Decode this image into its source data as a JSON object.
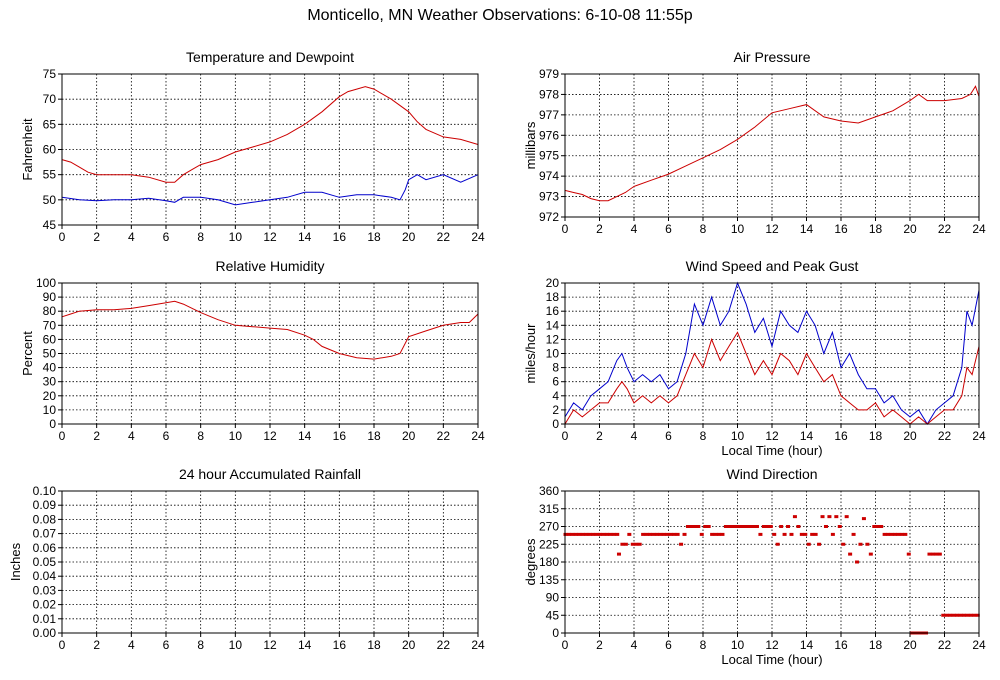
{
  "title": "Monticello, MN Weather Observations: 6-10-08 11:55p",
  "chart_data": [
    {
      "id": "temp",
      "type": "line",
      "title": "Temperature and Dewpoint",
      "xlabel": "",
      "ylabel": "Fahrenheit",
      "xlim": [
        0,
        24
      ],
      "ylim": [
        45,
        75
      ],
      "xticks": [
        0,
        2,
        4,
        6,
        8,
        10,
        12,
        14,
        16,
        18,
        20,
        22,
        24
      ],
      "yticks": [
        45,
        50,
        55,
        60,
        65,
        70,
        75
      ],
      "series": [
        {
          "color": "#cc0000",
          "x": [
            0,
            0.5,
            1,
            1.5,
            2,
            3,
            4,
            5,
            6,
            6.5,
            7,
            7.5,
            8,
            9,
            10,
            11,
            12,
            13,
            14,
            15,
            16,
            16.5,
            17,
            17.5,
            18,
            19,
            20,
            20.5,
            21,
            22,
            23,
            24
          ],
          "y": [
            58,
            57.5,
            56.5,
            55.5,
            55,
            55,
            55,
            54.5,
            53.5,
            53.5,
            55,
            56,
            57,
            58,
            59.5,
            60.5,
            61.5,
            63,
            65,
            67.5,
            70.5,
            71.5,
            72,
            72.5,
            72,
            70,
            67.5,
            65.5,
            64,
            62.5,
            62,
            61
          ]
        },
        {
          "color": "#0000cc",
          "x": [
            0,
            1,
            2,
            3,
            4,
            5,
            6,
            6.5,
            7,
            8,
            9,
            10,
            11,
            12,
            13,
            14,
            15,
            16,
            17,
            18,
            19,
            19.5,
            19.8,
            20,
            20.5,
            21,
            22,
            23,
            24
          ],
          "y": [
            50.5,
            50,
            49.8,
            50,
            50,
            50.3,
            49.8,
            49.5,
            50.5,
            50.5,
            50,
            49,
            49.5,
            50,
            50.5,
            51.5,
            51.5,
            50.5,
            51,
            51,
            50.5,
            50,
            52,
            54,
            55,
            54,
            55,
            53.5,
            55
          ]
        }
      ]
    },
    {
      "id": "pressure",
      "type": "line",
      "title": "Air Pressure",
      "xlabel": "",
      "ylabel": "millibars",
      "xlim": [
        0,
        24
      ],
      "ylim": [
        972,
        979
      ],
      "xticks": [
        0,
        2,
        4,
        6,
        8,
        10,
        12,
        14,
        16,
        18,
        20,
        22,
        24
      ],
      "yticks": [
        972,
        973,
        974,
        975,
        976,
        977,
        978,
        979
      ],
      "series": [
        {
          "color": "#cc0000",
          "x": [
            0,
            0.5,
            1,
            1.5,
            2,
            2.5,
            3,
            3.5,
            4,
            5,
            6,
            7,
            8,
            9,
            10,
            11,
            12,
            13,
            14,
            15,
            16,
            17,
            18,
            19,
            20,
            20.5,
            21,
            22,
            23,
            23.5,
            23.8,
            24
          ],
          "y": [
            973.3,
            973.2,
            973.1,
            972.9,
            972.8,
            972.8,
            973,
            973.2,
            973.5,
            973.8,
            974.1,
            974.5,
            974.9,
            975.3,
            975.8,
            976.4,
            977.1,
            977.3,
            977.5,
            976.9,
            976.7,
            976.6,
            976.9,
            977.2,
            977.7,
            978,
            977.7,
            977.7,
            977.8,
            978,
            978.4,
            977.9
          ]
        }
      ]
    },
    {
      "id": "humidity",
      "type": "line",
      "title": "Relative Humidity",
      "xlabel": "",
      "ylabel": "Percent",
      "xlim": [
        0,
        24
      ],
      "ylim": [
        0,
        100
      ],
      "xticks": [
        0,
        2,
        4,
        6,
        8,
        10,
        12,
        14,
        16,
        18,
        20,
        22,
        24
      ],
      "yticks": [
        0,
        10,
        20,
        30,
        40,
        50,
        60,
        70,
        80,
        90,
        100
      ],
      "series": [
        {
          "color": "#cc0000",
          "x": [
            0,
            0.5,
            1,
            2,
            3,
            4,
            5,
            6,
            6.5,
            7,
            8,
            9,
            10,
            11,
            12,
            13,
            14,
            14.5,
            15,
            16,
            17,
            18,
            19,
            19.5,
            20,
            21,
            22,
            23,
            23.5,
            24
          ],
          "y": [
            76,
            78,
            80,
            81,
            81,
            82,
            84,
            86,
            87,
            85,
            79,
            74,
            70,
            69,
            68,
            67,
            63,
            60,
            55,
            50,
            47,
            46,
            48,
            50,
            62,
            66,
            70,
            72,
            72,
            78
          ]
        }
      ]
    },
    {
      "id": "wind",
      "type": "line",
      "title": "Wind Speed and Peak Gust",
      "xlabel": "Local Time (hour)",
      "ylabel": "miles/hour",
      "xlim": [
        0,
        24
      ],
      "ylim": [
        0,
        20
      ],
      "xticks": [
        0,
        2,
        4,
        6,
        8,
        10,
        12,
        14,
        16,
        18,
        20,
        22,
        24
      ],
      "yticks": [
        0,
        2,
        4,
        6,
        8,
        10,
        12,
        14,
        16,
        18,
        20
      ],
      "series": [
        {
          "color": "#0000cc",
          "x": [
            0,
            0.5,
            1,
            1.5,
            2,
            2.5,
            3,
            3.3,
            3.6,
            4,
            4.5,
            5,
            5.5,
            6,
            6.5,
            7,
            7.5,
            8,
            8.5,
            9,
            9.5,
            10,
            10.5,
            11,
            11.5,
            12,
            12.5,
            13,
            13.5,
            14,
            14.5,
            15,
            15.5,
            16,
            16.5,
            17,
            17.5,
            18,
            18.5,
            19,
            19.5,
            20,
            20.5,
            21,
            21.5,
            22,
            22.5,
            23,
            23.3,
            23.6,
            24
          ],
          "y": [
            1,
            3,
            2,
            4,
            5,
            6,
            9,
            10,
            8,
            6,
            7,
            6,
            7,
            5,
            6,
            10,
            17,
            14,
            18,
            14,
            16,
            20,
            17,
            13,
            15,
            11,
            16,
            14,
            13,
            16,
            14,
            10,
            13,
            8,
            10,
            7,
            5,
            5,
            3,
            4,
            2,
            1,
            2,
            0,
            2,
            3,
            4,
            8,
            16,
            14,
            19
          ]
        },
        {
          "color": "#cc0000",
          "x": [
            0,
            0.5,
            1,
            1.5,
            2,
            2.5,
            3,
            3.3,
            3.6,
            4,
            4.5,
            5,
            5.5,
            6,
            6.5,
            7,
            7.5,
            8,
            8.5,
            9,
            9.5,
            10,
            10.5,
            11,
            11.5,
            12,
            12.5,
            13,
            13.5,
            14,
            14.5,
            15,
            15.5,
            16,
            16.5,
            17,
            17.5,
            18,
            18.5,
            19,
            19.5,
            20,
            20.5,
            21,
            21.5,
            22,
            22.5,
            23,
            23.3,
            23.6,
            24
          ],
          "y": [
            0,
            2,
            1,
            2,
            3,
            3,
            5,
            6,
            5,
            3,
            4,
            3,
            4,
            3,
            4,
            7,
            10,
            8,
            12,
            9,
            11,
            13,
            10,
            7,
            9,
            7,
            10,
            9,
            7,
            10,
            8,
            6,
            7,
            4,
            3,
            2,
            2,
            3,
            1,
            2,
            1,
            0,
            1,
            0,
            1,
            2,
            2,
            4,
            8,
            7,
            11
          ]
        }
      ]
    },
    {
      "id": "rain",
      "type": "line",
      "title": "24 hour Accumulated Rainfall",
      "xlabel": "",
      "ylabel": "Inches",
      "xlim": [
        0,
        24
      ],
      "ylim": [
        0,
        0.1
      ],
      "xticks": [
        0,
        2,
        4,
        6,
        8,
        10,
        12,
        14,
        16,
        18,
        20,
        22,
        24
      ],
      "yticks": [
        "0.00",
        "0.01",
        "0.02",
        "0.03",
        "0.04",
        "0.05",
        "0.06",
        "0.07",
        "0.08",
        "0.09",
        "0.10"
      ],
      "series": [
        {
          "color": "#cc0000",
          "x": [
            0,
            24
          ],
          "y": [
            0,
            0
          ]
        }
      ]
    },
    {
      "id": "direction",
      "type": "scatter",
      "title": "Wind Direction",
      "xlabel": "Local Time (hour)",
      "ylabel": "degrees",
      "xlim": [
        0,
        24
      ],
      "ylim": [
        0,
        360
      ],
      "xticks": [
        0,
        2,
        4,
        6,
        8,
        10,
        12,
        14,
        16,
        18,
        20,
        22,
        24
      ],
      "yticks": [
        0,
        45,
        90,
        135,
        180,
        225,
        270,
        315,
        360
      ],
      "series": [
        {
          "color": "#cc0000",
          "mode": "points",
          "x": [
            0,
            0.2,
            0.4,
            0.6,
            0.8,
            1,
            1.2,
            1.4,
            1.6,
            1.8,
            2,
            2.2,
            2.4,
            2.6,
            2.8,
            3,
            3.1,
            3.3,
            3.5,
            3.7,
            3.9,
            4.1,
            4.3,
            4.5,
            4.7,
            4.9,
            5.1,
            5.3,
            5.5,
            5.7,
            5.9,
            6.1,
            6.3,
            6.5,
            6.7,
            6.9,
            7.1,
            7.3,
            7.5,
            7.7,
            7.9,
            8.1,
            8.3,
            8.5,
            8.7,
            8.9,
            9.1,
            9.3,
            9.5,
            9.7,
            9.9,
            10.1,
            10.3,
            10.5,
            10.7,
            10.9,
            11.1,
            11.3,
            11.5,
            11.7,
            11.9,
            12.1,
            12.3,
            12.5,
            12.7,
            12.9,
            13.1,
            13.3,
            13.5,
            13.7,
            13.9,
            14.1,
            14.3,
            14.5,
            14.7,
            14.9,
            15.1,
            15.3,
            15.5,
            15.7,
            15.9,
            16.1,
            16.3,
            16.5,
            16.7,
            16.9,
            17.1,
            17.3,
            17.5,
            17.7,
            17.9,
            18.1,
            18.3,
            18.5,
            18.7,
            18.9,
            19.1,
            19.3,
            19.5,
            19.7,
            19.9,
            20.1,
            20.3,
            20.5,
            20.7,
            20.9,
            21.1,
            21.3,
            21.5,
            21.7,
            21.9,
            22.1,
            22.3,
            22.5,
            22.7,
            22.9,
            23.1,
            23.3,
            23.5,
            23.7,
            23.9
          ],
          "y": [
            250,
            250,
            250,
            250,
            250,
            250,
            250,
            250,
            250,
            250,
            250,
            250,
            250,
            250,
            250,
            250,
            200,
            225,
            225,
            250,
            225,
            225,
            225,
            250,
            250,
            250,
            250,
            250,
            250,
            250,
            250,
            250,
            250,
            250,
            225,
            250,
            270,
            270,
            270,
            270,
            250,
            270,
            270,
            250,
            250,
            250,
            250,
            270,
            270,
            270,
            270,
            270,
            270,
            270,
            270,
            270,
            270,
            250,
            270,
            270,
            270,
            250,
            225,
            270,
            250,
            270,
            250,
            295,
            270,
            250,
            250,
            225,
            250,
            250,
            225,
            295,
            270,
            295,
            250,
            295,
            270,
            225,
            295,
            200,
            250,
            180,
            225,
            290,
            225,
            200,
            270,
            270,
            270,
            250,
            250,
            250,
            250,
            250,
            250,
            250,
            200,
            0,
            0,
            0,
            0,
            0,
            200,
            200,
            200,
            200,
            45,
            45,
            45,
            45,
            45,
            45,
            45,
            45,
            45,
            45,
            45
          ]
        }
      ]
    }
  ]
}
